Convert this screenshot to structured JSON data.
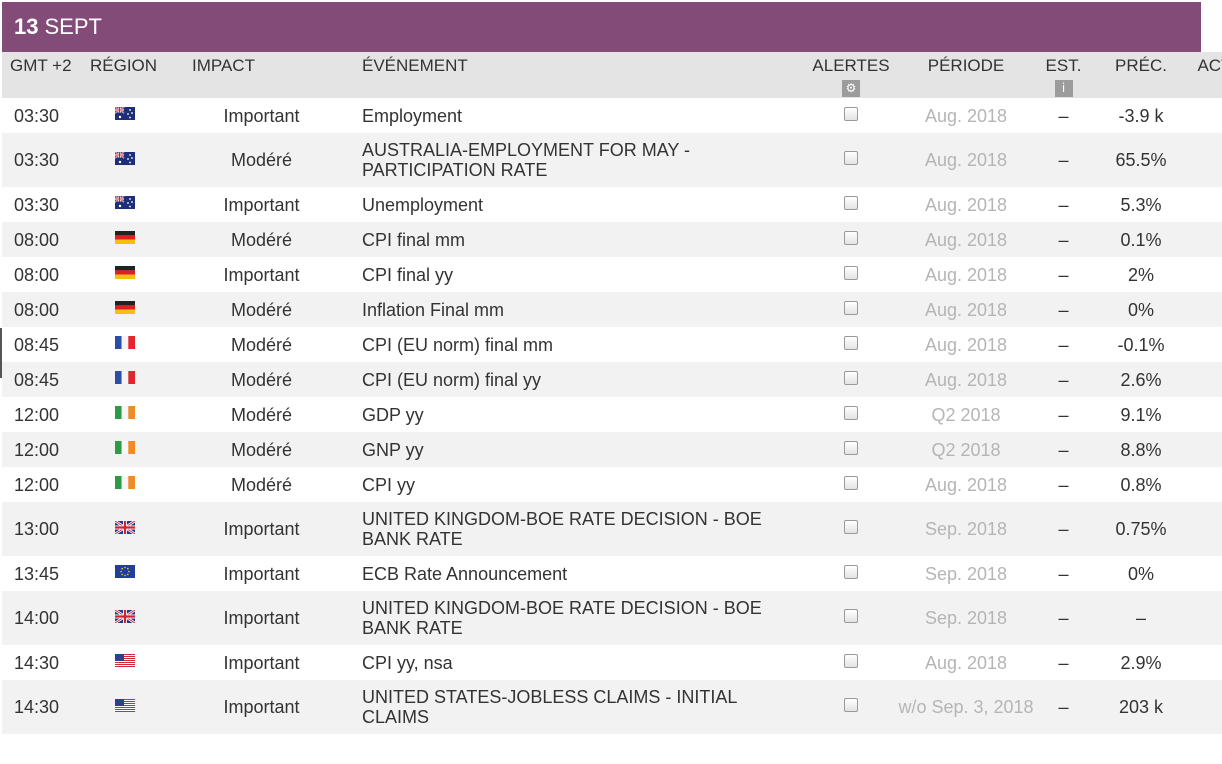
{
  "date": {
    "day": "13",
    "month": "SEPT"
  },
  "headers": {
    "time": "GMT +2",
    "region": "RÉGION",
    "impact": "IMPACT",
    "event": "ÉVÉNEMENT",
    "alerts": "ALERTES",
    "period": "PÉRIODE",
    "est": "EST.",
    "prev": "PRÉC.",
    "actual": "ACTUEL"
  },
  "header_icons": {
    "alerts": "gear-icon",
    "est": "info-icon",
    "actual": "info-icon"
  },
  "colors": {
    "date_bar": "#834b78",
    "header_bg": "#e4e4e4",
    "stripe": "#f2f2f2",
    "period_text": "#b5b5b5"
  },
  "rows": [
    {
      "time": "03:30",
      "region": "australia",
      "impact": "Important",
      "event": "Employment",
      "period": "Aug. 2018",
      "est": "–",
      "prev": "-3.9 k",
      "actual": "–"
    },
    {
      "time": "03:30",
      "region": "australia",
      "impact": "Modéré",
      "event": "AUSTRALIA-EMPLOYMENT FOR MAY - PARTICIPATION RATE",
      "period": "Aug. 2018",
      "est": "–",
      "prev": "65.5%",
      "actual": "–"
    },
    {
      "time": "03:30",
      "region": "australia",
      "impact": "Important",
      "event": "Unemployment",
      "period": "Aug. 2018",
      "est": "–",
      "prev": "5.3%",
      "actual": "–"
    },
    {
      "time": "08:00",
      "region": "germany",
      "impact": "Modéré",
      "event": "CPI final mm",
      "period": "Aug. 2018",
      "est": "–",
      "prev": "0.1%",
      "actual": "–"
    },
    {
      "time": "08:00",
      "region": "germany",
      "impact": "Important",
      "event": "CPI final yy",
      "period": "Aug. 2018",
      "est": "–",
      "prev": "2%",
      "actual": "–"
    },
    {
      "time": "08:00",
      "region": "germany",
      "impact": "Modéré",
      "event": "Inflation Final mm",
      "period": "Aug. 2018",
      "est": "–",
      "prev": "0%",
      "actual": "–"
    },
    {
      "time": "08:45",
      "region": "france",
      "impact": "Modéré",
      "event": "CPI (EU norm) final mm",
      "period": "Aug. 2018",
      "est": "–",
      "prev": "-0.1%",
      "actual": "–"
    },
    {
      "time": "08:45",
      "region": "france",
      "impact": "Modéré",
      "event": "CPI (EU norm) final yy",
      "period": "Aug. 2018",
      "est": "–",
      "prev": "2.6%",
      "actual": "–"
    },
    {
      "time": "12:00",
      "region": "ireland",
      "impact": "Modéré",
      "event": "GDP yy",
      "period": "Q2 2018",
      "est": "–",
      "prev": "9.1%",
      "actual": "–"
    },
    {
      "time": "12:00",
      "region": "ireland",
      "impact": "Modéré",
      "event": "GNP yy",
      "period": "Q2 2018",
      "est": "–",
      "prev": "8.8%",
      "actual": "–"
    },
    {
      "time": "12:00",
      "region": "ireland",
      "impact": "Modéré",
      "event": "CPI yy",
      "period": "Aug. 2018",
      "est": "–",
      "prev": "0.8%",
      "actual": "–"
    },
    {
      "time": "13:00",
      "region": "uk",
      "impact": "Important",
      "event": "UNITED KINGDOM-BOE RATE DECISION - BOE BANK RATE",
      "period": "Sep. 2018",
      "est": "–",
      "prev": "0.75%",
      "actual": "–"
    },
    {
      "time": "13:45",
      "region": "eu",
      "impact": "Important",
      "event": "ECB Rate Announcement",
      "period": "Sep. 2018",
      "est": "–",
      "prev": "0%",
      "actual": "–"
    },
    {
      "time": "14:00",
      "region": "uk",
      "impact": "Important",
      "event": "UNITED KINGDOM-BOE RATE DECISION - BOE BANK RATE",
      "period": "Sep. 2018",
      "est": "–",
      "prev": "–",
      "actual": "–"
    },
    {
      "time": "14:30",
      "region": "usa",
      "impact": "Important",
      "event": "CPI yy, nsa",
      "period": "Aug. 2018",
      "est": "–",
      "prev": "2.9%",
      "actual": "–"
    },
    {
      "time": "14:30",
      "region": "usa",
      "impact": "Important",
      "event": "UNITED STATES-JOBLESS CLAIMS - INITIAL CLAIMS",
      "period": "w/o Sep. 3, 2018",
      "est": "–",
      "prev": "203 k",
      "actual": "–"
    }
  ]
}
